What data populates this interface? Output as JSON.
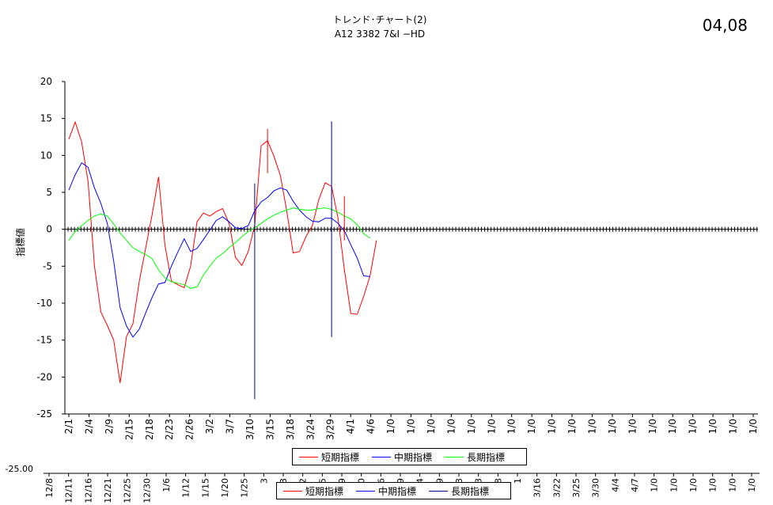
{
  "title_line1": "トレンド･チャート(2)",
  "title_line2": "A12 3382 7&I −HD",
  "stamp": "04,08",
  "colors": {
    "short": "#ff0000",
    "mid": "#0000ff",
    "long": "#00ff00",
    "marker": "#000080"
  },
  "chart_data": {
    "type": "line",
    "ylabel": "指標値",
    "ylim": [
      -25,
      20
    ],
    "yticks": [
      20,
      15,
      10,
      5,
      0,
      -5,
      -10,
      -15,
      -20,
      -25
    ],
    "x_labels": [
      "2/1",
      "2/4",
      "2/9",
      "2/15",
      "2/18",
      "2/23",
      "2/26",
      "3/2",
      "3/7",
      "3/10",
      "3/15",
      "3/18",
      "3/24",
      "3/29",
      "4/1",
      "4/6",
      "1/0",
      "1/0",
      "1/0",
      "1/0",
      "1/0",
      "1/0",
      "1/0",
      "1/0",
      "1/0",
      "1/0",
      "1/0",
      "1/0",
      "1/0",
      "1/0",
      "1/0",
      "1/0",
      "1/0",
      "1/0",
      "1/0"
    ],
    "series": [
      {
        "name": "短期指標",
        "key": "short",
        "values": [
          12.2,
          14.5,
          11.8,
          6.5,
          -5,
          -11.2,
          -13,
          -15,
          -20.8,
          -14.5,
          -12.8,
          -7,
          -2.5,
          2,
          7.1,
          -2.2,
          -7,
          -7.5,
          -7.9,
          -5,
          1,
          2.2,
          1.8,
          2.4,
          2.8,
          0.8,
          -3.8,
          -4.9,
          -3,
          0.5,
          11.3,
          12,
          9.9,
          7.3,
          2.5,
          -3.2,
          -3,
          -1,
          0.5,
          4,
          6.3,
          5.8,
          1.5,
          -5.5,
          -11.4,
          -11.5,
          -9.1,
          -6.3,
          -1.5
        ]
      },
      {
        "name": "中期指標",
        "key": "mid",
        "values": [
          5.3,
          7.4,
          9,
          8.4,
          5.6,
          3.5,
          0.8,
          -4.3,
          -10.6,
          -13.1,
          -14.6,
          -13.5,
          -11.3,
          -9.2,
          -7.4,
          -7.2,
          -5,
          -3.1,
          -1.3,
          -3,
          -2.6,
          -1.4,
          -0.1,
          1.2,
          1.7,
          1,
          0.2,
          0.1,
          0.5,
          2.5,
          3.7,
          4.3,
          5.2,
          5.6,
          5.3,
          3.8,
          2.6,
          1.7,
          1.1,
          1,
          1.5,
          1.5,
          0.8,
          -0.2,
          -2.1,
          -3.9,
          -6.3,
          -6.4
        ]
      },
      {
        "name": "長期指標",
        "key": "long",
        "values": [
          -1.5,
          -0.3,
          0.5,
          1.2,
          1.8,
          2.1,
          1.8,
          0.7,
          -0.5,
          -1.5,
          -2.5,
          -3,
          -3.4,
          -4,
          -5.5,
          -6.6,
          -7.1,
          -7.3,
          -7.5,
          -8,
          -7.8,
          -6.2,
          -5,
          -3.9,
          -3.3,
          -2.5,
          -1.8,
          -1,
          -0.3,
          0.2,
          0.8,
          1.4,
          1.9,
          2.3,
          2.6,
          2.9,
          2.7,
          2.6,
          2.6,
          2.8,
          2.9,
          2.7,
          2.3,
          1.8,
          1.4,
          0.6,
          -0.6,
          -1.2
        ]
      }
    ],
    "markers": [
      {
        "index": 29,
        "high": 6.2,
        "low": -23
      },
      {
        "index": 31,
        "high": 13.6,
        "low": 7.6
      },
      {
        "index": 41,
        "high": 14.6,
        "low": -14.6
      },
      {
        "index": 43,
        "high": 4.5,
        "low": -1.5
      }
    ]
  },
  "ghost": {
    "tick_label": "-25.00",
    "x_labels": [
      "12/8",
      "12/11",
      "12/16",
      "12/21",
      "12/25",
      "12/30",
      "1/6",
      "1/12",
      "1/15",
      "1/20",
      "1/25",
      "3",
      "3",
      "2",
      "5",
      "9",
      "0",
      "6",
      "9",
      "4",
      "9",
      "3",
      "3",
      "8",
      "1",
      "3/16",
      "3/22",
      "3/25",
      "3/30",
      "4/4",
      "4/7",
      "1/0",
      "1/0",
      "1/0",
      "1/0",
      "1/0",
      "1/0"
    ],
    "legend": [
      {
        "name": "短期指標",
        "key": "short"
      },
      {
        "name": "中期指標",
        "key": "mid"
      },
      {
        "name": "長期指標",
        "key": "marker"
      }
    ]
  }
}
